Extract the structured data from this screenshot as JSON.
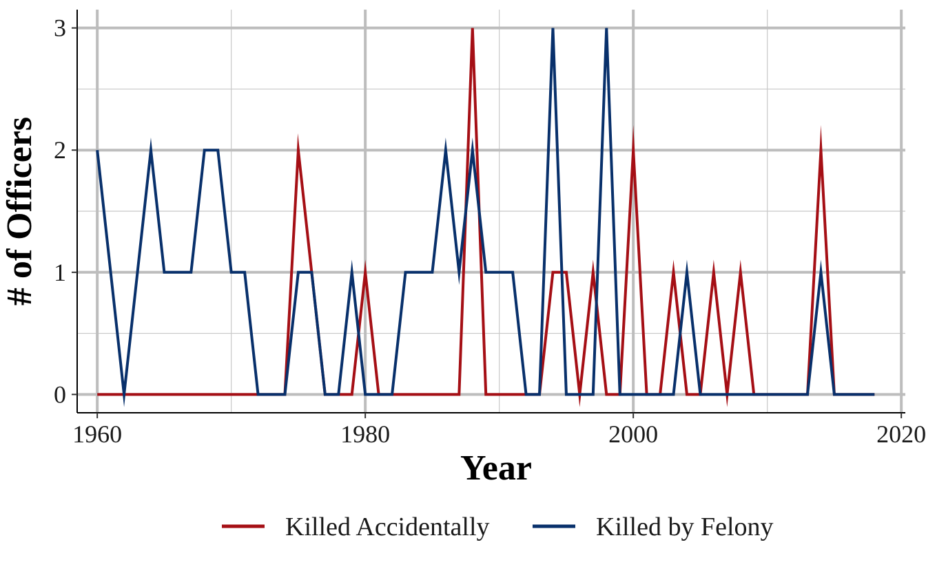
{
  "chart_data": {
    "type": "line",
    "title": "",
    "xlabel": "Year",
    "ylabel": "# of Officers",
    "xlim": [
      1958.5,
      2020.3
    ],
    "ylim": [
      -0.15,
      3.15
    ],
    "x_ticks": [
      1960,
      1980,
      2000,
      2020
    ],
    "x_tick_labels": [
      "1960",
      "1980",
      "2000",
      "2020"
    ],
    "y_ticks": [
      0,
      1,
      2,
      3
    ],
    "y_tick_labels": [
      "0",
      "1",
      "2",
      "3"
    ],
    "grid": true,
    "legend_position": "bottom",
    "x": [
      1960,
      1961,
      1962,
      1963,
      1964,
      1965,
      1966,
      1967,
      1968,
      1969,
      1970,
      1971,
      1972,
      1973,
      1974,
      1975,
      1976,
      1977,
      1978,
      1979,
      1980,
      1981,
      1982,
      1983,
      1984,
      1985,
      1986,
      1987,
      1988,
      1989,
      1990,
      1991,
      1992,
      1993,
      1994,
      1995,
      1996,
      1997,
      1998,
      1999,
      2000,
      2001,
      2002,
      2003,
      2004,
      2005,
      2006,
      2007,
      2008,
      2009,
      2010,
      2011,
      2012,
      2013,
      2014,
      2015,
      2016,
      2017,
      2018
    ],
    "series": [
      {
        "name": "Killed Accidentally",
        "color": "#a50f15",
        "values": [
          0,
          0,
          0,
          0,
          0,
          0,
          0,
          0,
          0,
          0,
          0,
          0,
          0,
          0,
          0,
          2,
          1,
          0,
          0,
          0,
          1,
          0,
          0,
          0,
          0,
          0,
          0,
          0,
          3,
          0,
          0,
          0,
          0,
          0,
          1,
          1,
          0,
          1,
          0,
          0,
          2,
          0,
          0,
          1,
          0,
          0,
          1,
          0,
          1,
          0,
          0,
          0,
          0,
          0,
          2,
          0,
          0,
          0,
          0
        ]
      },
      {
        "name": "Killed by Felony",
        "color": "#08306b",
        "values": [
          2,
          1,
          0,
          1,
          2,
          1,
          1,
          1,
          2,
          2,
          1,
          1,
          0,
          0,
          0,
          1,
          1,
          0,
          0,
          1,
          0,
          0,
          0,
          1,
          1,
          1,
          2,
          1,
          2,
          1,
          1,
          1,
          0,
          0,
          3,
          0,
          0,
          0,
          3,
          0,
          0,
          0,
          0,
          0,
          1,
          0,
          0,
          0,
          0,
          0,
          0,
          0,
          0,
          0,
          1,
          0,
          0,
          0,
          0
        ]
      }
    ]
  }
}
